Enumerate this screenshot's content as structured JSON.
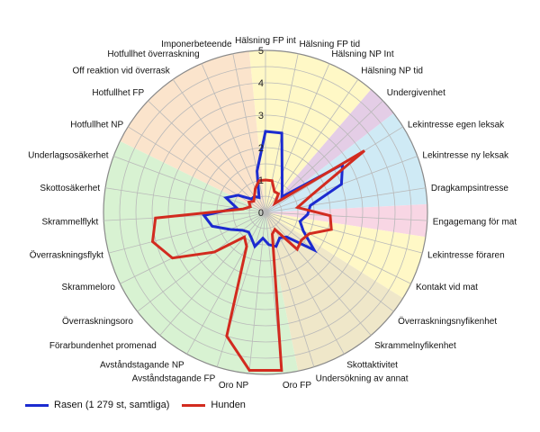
{
  "chart_data": {
    "type": "radar",
    "title": "",
    "rlim": [
      0,
      5
    ],
    "r_ticks": [
      "0",
      "1",
      "2",
      "3",
      "4",
      "5"
    ],
    "categories": [
      "Hälsning FP int",
      "Hälsning FP tid",
      "Hälsning NP Int",
      "Hälsning NP tid",
      "Undergivenhet",
      "Lekintresse egen leksak",
      "Lekintresse ny leksak",
      "Dragkampsintresse",
      "Engagemang för mat",
      "Lekintresse föraren",
      "Kontakt vid mat",
      "Överraskningsnyfikenhet",
      "Skrammelnyfikenhet",
      "Skottaktivitet",
      "Undersökning av annat",
      "Oro FP",
      "Oro NP",
      "Avståndstagande FP",
      "Avståndstagande NP",
      "Förarbundenhet promenad",
      "Överraskningsoro",
      "Skrammeloro",
      "Överraskningsflykt",
      "Skrammelflykt",
      "Skottosäkerhet",
      "Underlagsosäkerhet",
      "Hotfullhet NP",
      "Hotfullhet FP",
      "Off reaktion vid överrask",
      "Hotfullhet överraskning",
      "Imponerbeteende"
    ],
    "series": [
      {
        "name": "Rasen (1 279 st, samtliga)",
        "color": "#1c2bd0",
        "values": [
          2.5,
          2.5,
          1.3,
          0.9,
          0.7,
          2.8,
          2.5,
          1.4,
          1.3,
          1.1,
          1.3,
          1.9,
          1.0,
          0.9,
          1.1,
          1.0,
          0.8,
          1.1,
          0.9,
          0.8,
          0.9,
          1.2,
          1.7,
          1.9,
          0.9,
          1.3,
          1.0,
          0.6,
          0.6,
          0.5,
          1.3
        ]
      },
      {
        "name": "Hunden",
        "color": "#d22b1f",
        "values": [
          1.0,
          1.0,
          0.7,
          0.7,
          0.4,
          3.6,
          1.5,
          1.0,
          2.0,
          2.1,
          1.5,
          1.4,
          1.5,
          0.6,
          0.7,
          4.9,
          4.9,
          4.0,
          1.2,
          1.0,
          2.0,
          3.2,
          3.6,
          3.4,
          0.7,
          0.5,
          0.6,
          0.5,
          0.6,
          0.8,
          1.0
        ]
      }
    ],
    "background_sectors": [
      {
        "from": "Hälsning FP int",
        "to": "Hälsning NP tid",
        "color": "#fff8c6"
      },
      {
        "from": "Undergivenhet",
        "to": "Undergivenhet",
        "color": "#e4cde6"
      },
      {
        "from": "Lekintresse egen leksak",
        "to": "Dragkampsintresse",
        "color": "#cfeaf5"
      },
      {
        "from": "Engagemang för mat",
        "to": "Engagemang för mat",
        "color": "#f8d6e4"
      },
      {
        "from": "Lekintresse föraren",
        "to": "Kontakt vid mat",
        "color": "#fff8c6"
      },
      {
        "from": "Överraskningsnyfikenhet",
        "to": "Undersökning av annat",
        "color": "#efe7c9"
      },
      {
        "from": "Oro FP",
        "to": "Underlagsosäkerhet",
        "color": "#d8f2d2"
      },
      {
        "from": "Hotfullhet NP",
        "to": "Imponerbeteende",
        "color": "#fbe4cc"
      }
    ],
    "legend": {
      "placement": "bottom-left"
    }
  }
}
